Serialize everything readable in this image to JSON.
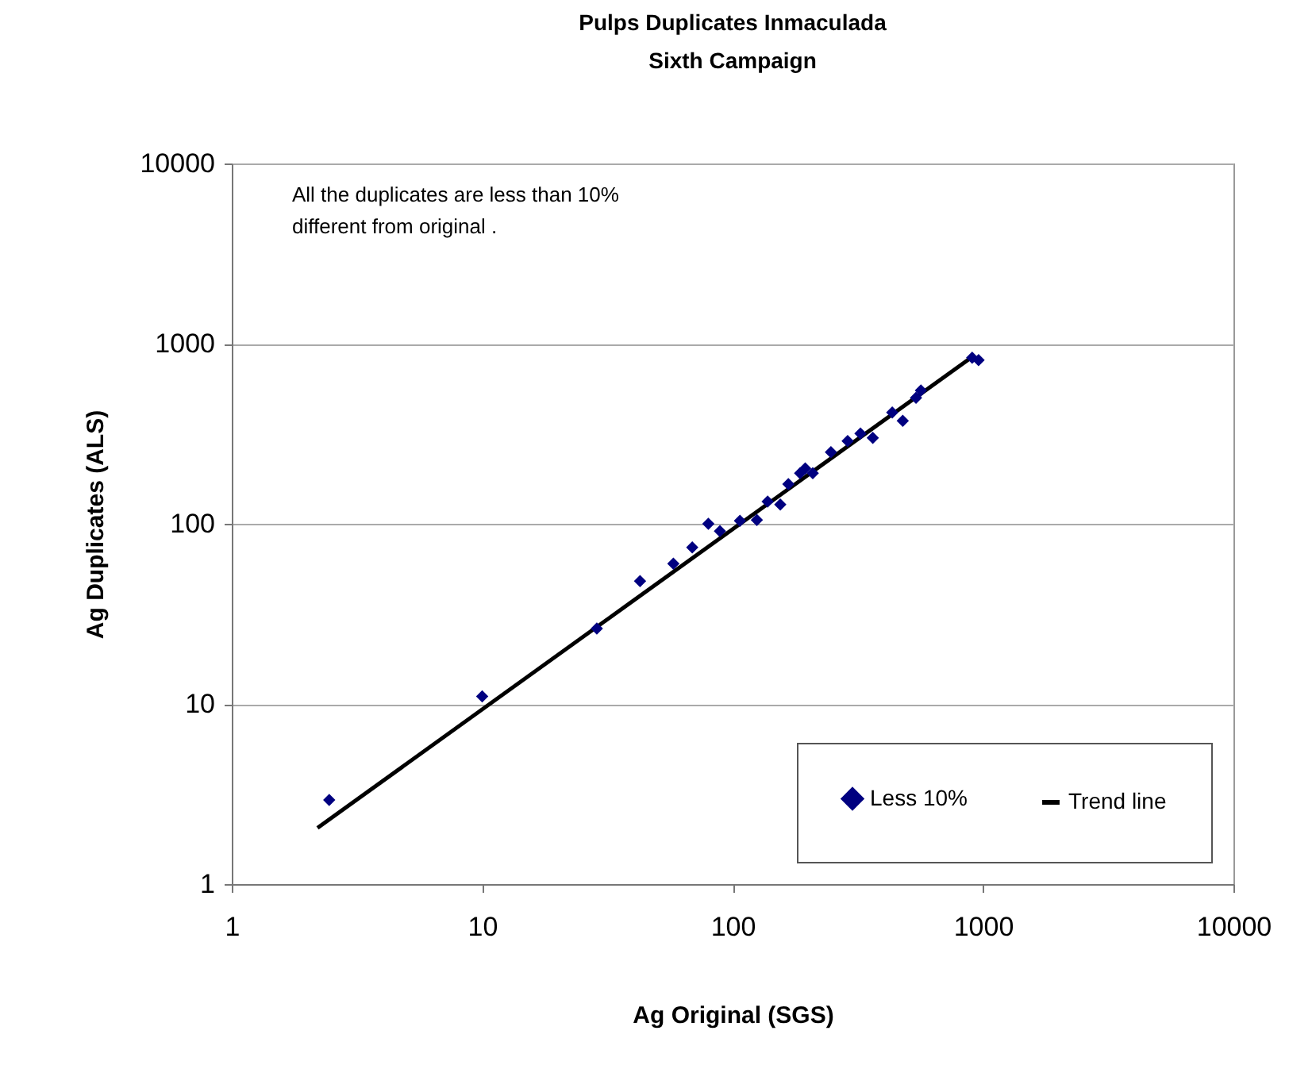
{
  "chart_data": {
    "type": "scatter",
    "title": "Pulps Duplicates Inmaculada\nSixth Campaign",
    "xlabel": "Ag Original (SGS)",
    "ylabel": "Ag Duplicates (ALS)",
    "log": "xy",
    "xlim": [
      1,
      10000
    ],
    "ylim": [
      1,
      10000
    ],
    "xticks": [
      1,
      10,
      100,
      1000,
      10000
    ],
    "yticks": [
      1,
      10,
      100,
      1000,
      10000
    ],
    "grid": "y",
    "legend": "bottom right",
    "marker": "diamond",
    "annotations": [
      "All the duplicates are less  than 10%\ndifferent from original ."
    ],
    "series": [
      {
        "name": "Less 10%",
        "color": "#000080",
        "x": [
          2.45,
          10,
          28.7,
          42.7,
          58,
          69,
          80,
          89,
          107,
          125,
          138,
          155,
          167,
          186,
          195,
          209,
          247,
          288,
          324,
          363,
          434,
          478,
          540,
          565,
          905,
          960
        ],
        "values": [
          2.93,
          11,
          26.2,
          48,
          60,
          74,
          100,
          91,
          104,
          105,
          133,
          128,
          166,
          191,
          203,
          191,
          250,
          288,
          317,
          300,
          415,
          373,
          500,
          550,
          835,
          810
        ]
      },
      {
        "name": "Trend line",
        "type": "line",
        "color": "#000000",
        "marker": "none",
        "x": [
          2.2,
          900
        ],
        "values": [
          2.05,
          840
        ]
      }
    ]
  }
}
